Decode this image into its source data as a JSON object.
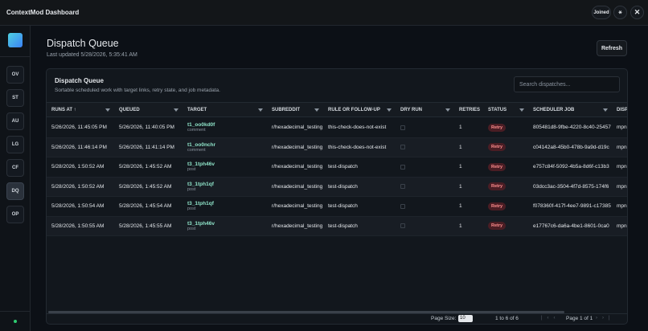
{
  "app": {
    "title": "ContextMod Dashboard",
    "status_button": "Joined"
  },
  "sidebar": {
    "items": [
      "OV",
      "ST",
      "AU",
      "LG",
      "CF",
      "DQ",
      "OP"
    ],
    "active": "DQ"
  },
  "header": {
    "title": "Dispatch Queue",
    "updated": "Last updated 5/28/2026, 5:35:41 AM",
    "refresh": "Refresh"
  },
  "card": {
    "title": "Dispatch Queue",
    "subtitle": "Sortable scheduled work with target links, retry state, and job metadata.",
    "search_placeholder": "Search dispatches..."
  },
  "table": {
    "columns": [
      "RUNS AT ↑",
      "QUEUED",
      "TARGET",
      "SUBREDDIT",
      "RULE OR FOLLOW-UP",
      "DRY RUN",
      "RETRIES",
      "STATUS",
      "SCHEDULER JOB",
      "DISP"
    ],
    "rows": [
      {
        "runs_at": "5/26/2026, 11:45:05 PM",
        "queued": "5/26/2026, 11:40:05 PM",
        "target": "t1_oo0kd0f",
        "target_kind": "comment",
        "subreddit": "r/hexadecimal_testing",
        "rule": "this-check-does-not-exist",
        "retries": "1",
        "status": "Retry",
        "scheduler_job": "805481d8-9fbe-4220-8c40-25457",
        "dispatcher": "mpn"
      },
      {
        "runs_at": "5/26/2026, 11:46:14 PM",
        "queued": "5/26/2026, 11:41:14 PM",
        "target": "t1_oo0nchr",
        "target_kind": "comment",
        "subreddit": "r/hexadecimal_testing",
        "rule": "this-check-does-not-exist",
        "retries": "1",
        "status": "Retry",
        "scheduler_job": "c04142a8-45b0-478b-9a9d-d19c",
        "dispatcher": "mpn"
      },
      {
        "runs_at": "5/28/2026, 1:50:52 AM",
        "queued": "5/28/2026, 1:45:52 AM",
        "target": "t3_1tph46v",
        "target_kind": "post",
        "subreddit": "r/hexadecimal_testing",
        "rule": "test-dispatch",
        "retries": "1",
        "status": "Retry",
        "scheduler_job": "e757c84f-5092-4b5a-8d6f-c13b3",
        "dispatcher": "mpn"
      },
      {
        "runs_at": "5/28/2026, 1:50:52 AM",
        "queued": "5/28/2026, 1:45:52 AM",
        "target": "t3_1tph1qf",
        "target_kind": "post",
        "subreddit": "r/hexadecimal_testing",
        "rule": "test-dispatch",
        "retries": "1",
        "status": "Retry",
        "scheduler_job": "03dcc3ac-3504-4f7d-8575-174f6",
        "dispatcher": "mpn"
      },
      {
        "runs_at": "5/28/2026, 1:50:54 AM",
        "queued": "5/28/2026, 1:45:54 AM",
        "target": "t3_1tph1qf",
        "target_kind": "post",
        "subreddit": "r/hexadecimal_testing",
        "rule": "test-dispatch",
        "retries": "1",
        "status": "Retry",
        "scheduler_job": "f078360f-417f-4ee7-9891-c17385",
        "dispatcher": "mpn"
      },
      {
        "runs_at": "5/28/2026, 1:50:55 AM",
        "queued": "5/28/2026, 1:45:55 AM",
        "target": "t3_1tph46v",
        "target_kind": "post",
        "subreddit": "r/hexadecimal_testing",
        "rule": "test-dispatch",
        "retries": "1",
        "status": "Retry",
        "scheduler_job": "e17767c6-da6a-4be1-8601-0ca0",
        "dispatcher": "mpn"
      }
    ]
  },
  "footer": {
    "page_size_label": "Page Size:",
    "page_size": "10",
    "range": "1 to 6 of 6",
    "page": "Page 1 of 1"
  }
}
